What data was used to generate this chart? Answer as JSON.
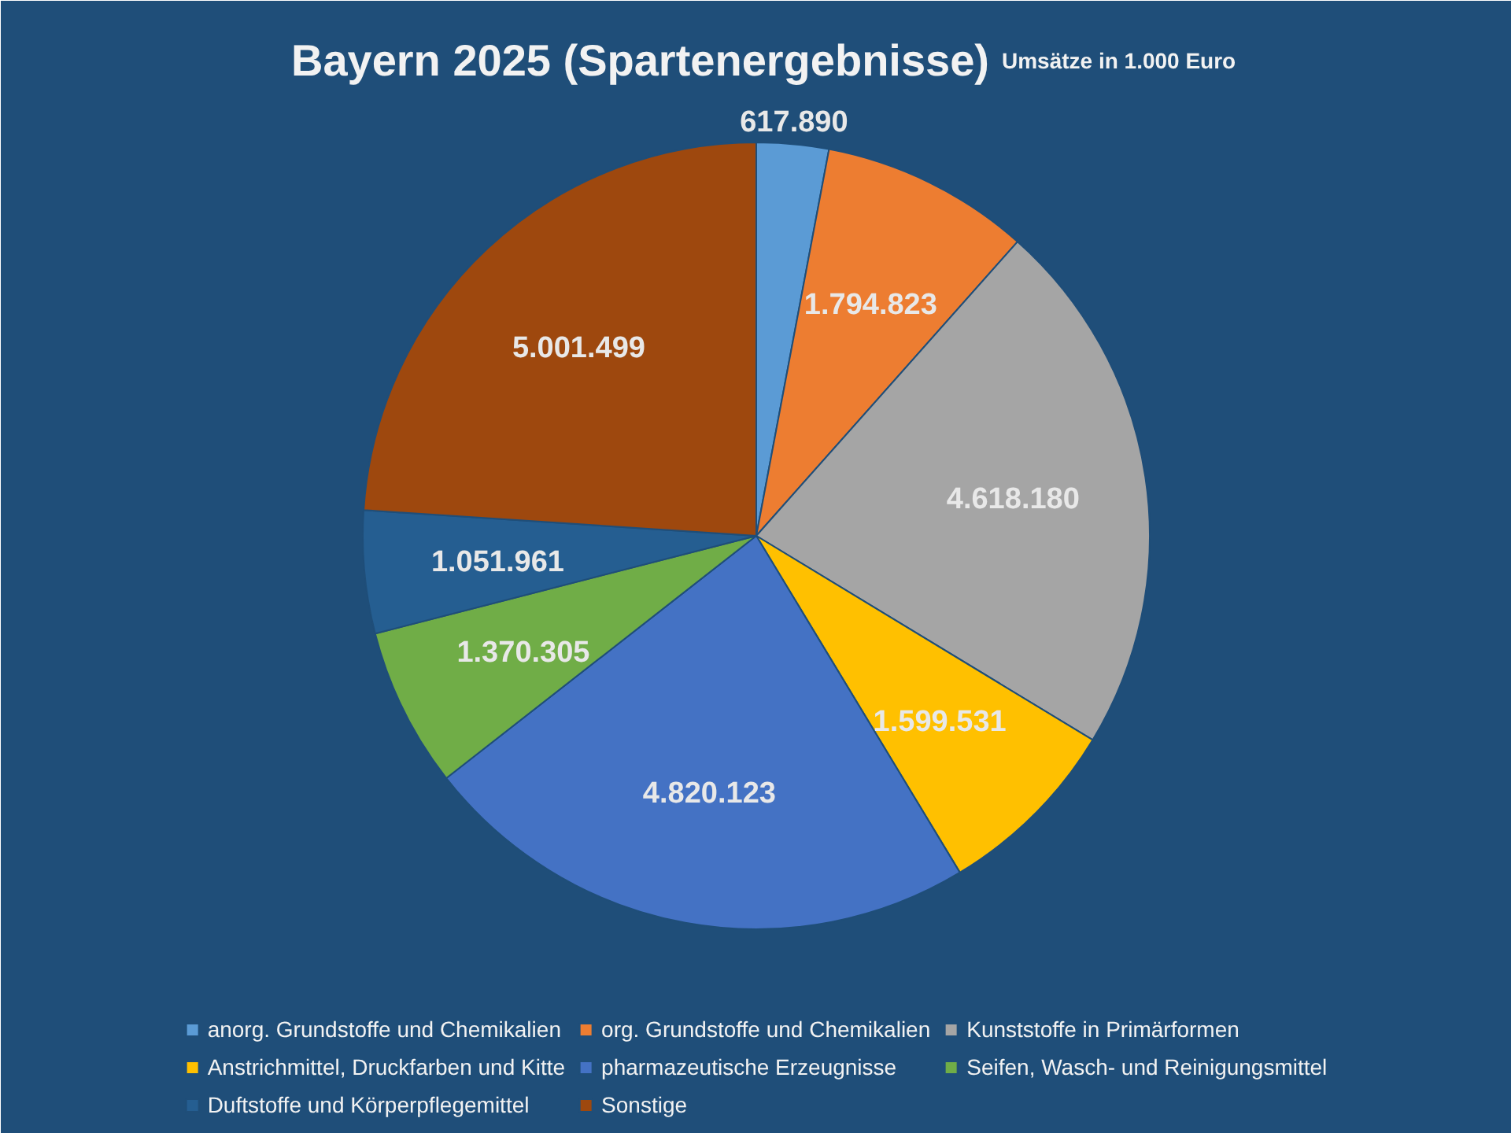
{
  "chart_data": {
    "type": "pie",
    "title": "Bayern 2025 (Spartenergebnisse)",
    "subtitle": "Umsätze in 1.000 Euro",
    "categories": [
      "anorg. Grundstoffe und Chemikalien",
      "org. Grundstoffe und Chemikalien",
      "Kunststoffe in Primärformen",
      "Anstrichmittel, Druckfarben und Kitte",
      "pharmazeutische Erzeugnisse",
      "Seifen, Wasch- und Reinigungsmittel",
      "Duftstoffe und Körperpflegemittel",
      "Sonstige"
    ],
    "values": [
      617890,
      1794823,
      4618180,
      1599531,
      4820123,
      1370305,
      1051961,
      5001499
    ],
    "value_labels": [
      "617.890",
      "1.794.823",
      "4.618.180",
      "1.599.531",
      "4.820.123",
      "1.370.305",
      "1.051.961",
      "5.001.499"
    ],
    "colors": [
      "#5b9bd5",
      "#ed7d31",
      "#a5a5a5",
      "#ffc000",
      "#4472c4",
      "#70ad47",
      "#255e91",
      "#9e480e"
    ],
    "legend": "bottom"
  }
}
